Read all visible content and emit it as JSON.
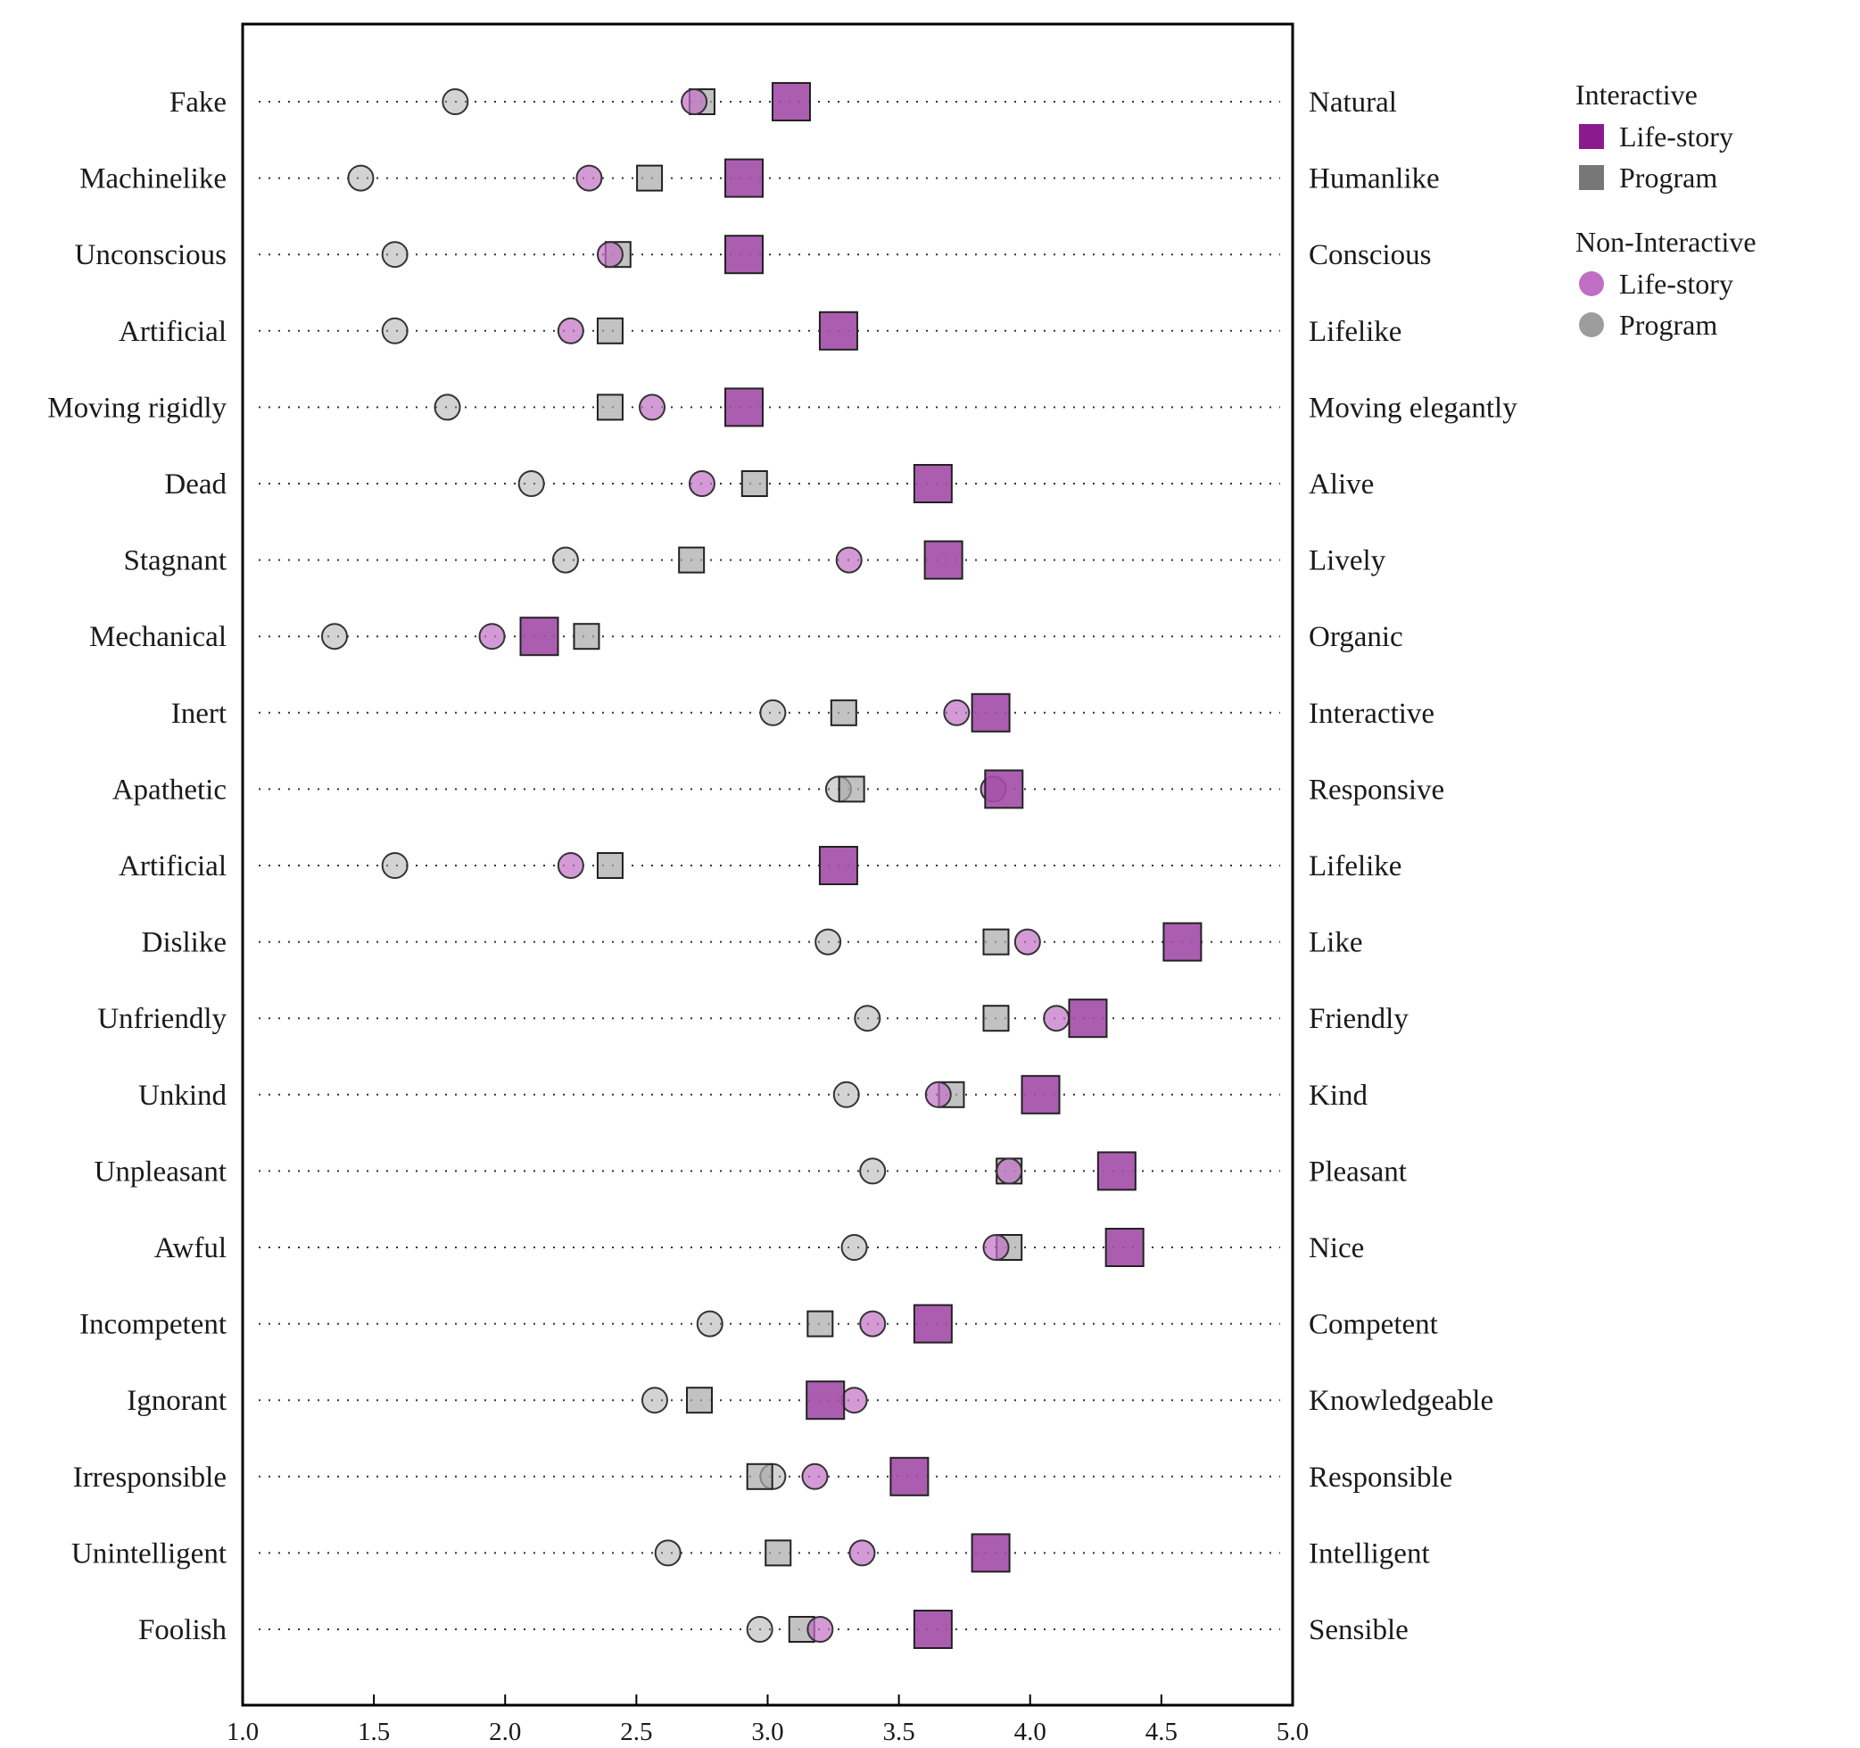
{
  "chart_data": {
    "type": "scatter",
    "orientation": "horizontal",
    "xlim": [
      1.0,
      5.0
    ],
    "x_ticks": [
      "1.0",
      "1.5",
      "2.0",
      "2.5",
      "3.0",
      "3.5",
      "4.0",
      "4.5",
      "5.0"
    ],
    "x_tick_values": [
      1.0,
      1.5,
      2.0,
      2.5,
      3.0,
      3.5,
      4.0,
      4.5,
      5.0
    ],
    "rows": [
      {
        "left": "Fake",
        "right": "Natural"
      },
      {
        "left": "Machinelike",
        "right": "Humanlike"
      },
      {
        "left": "Unconscious",
        "right": "Conscious"
      },
      {
        "left": "Artificial",
        "right": "Lifelike"
      },
      {
        "left": "Moving rigidly",
        "right": "Moving elegantly"
      },
      {
        "left": "Dead",
        "right": "Alive"
      },
      {
        "left": "Stagnant",
        "right": "Lively"
      },
      {
        "left": "Mechanical",
        "right": "Organic"
      },
      {
        "left": "Inert",
        "right": "Interactive"
      },
      {
        "left": "Apathetic",
        "right": "Responsive"
      },
      {
        "left": "Artificial",
        "right": "Lifelike"
      },
      {
        "left": "Dislike",
        "right": "Like"
      },
      {
        "left": "Unfriendly",
        "right": "Friendly"
      },
      {
        "left": "Unkind",
        "right": "Kind"
      },
      {
        "left": "Unpleasant",
        "right": "Pleasant"
      },
      {
        "left": "Awful",
        "right": "Nice"
      },
      {
        "left": "Incompetent",
        "right": "Competent"
      },
      {
        "left": "Ignorant",
        "right": "Knowledgeable"
      },
      {
        "left": "Irresponsible",
        "right": "Responsible"
      },
      {
        "left": "Unintelligent",
        "right": "Intelligent"
      },
      {
        "left": "Foolish",
        "right": "Sensible"
      }
    ],
    "series": [
      {
        "name": "Life-story",
        "group": "Interactive",
        "marker": "square-large",
        "color": "#8b1a8f",
        "values": [
          3.09,
          2.91,
          2.91,
          3.27,
          2.91,
          3.63,
          3.67,
          2.13,
          3.85,
          3.9,
          3.27,
          4.58,
          4.22,
          4.04,
          4.33,
          4.36,
          3.63,
          3.22,
          3.54,
          3.85,
          3.63
        ]
      },
      {
        "name": "Program",
        "group": "Interactive",
        "marker": "square-small",
        "color": "#777777",
        "values": [
          2.75,
          2.55,
          2.43,
          2.4,
          2.4,
          2.95,
          2.71,
          2.31,
          3.29,
          3.32,
          2.4,
          3.87,
          3.87,
          3.7,
          3.92,
          3.92,
          3.2,
          2.74,
          2.97,
          3.04,
          3.13
        ]
      },
      {
        "name": "Life-story",
        "group": "Non-Interactive",
        "marker": "circle",
        "color": "#c06fc4",
        "values": [
          2.72,
          2.32,
          2.4,
          2.25,
          2.56,
          2.75,
          3.31,
          1.95,
          3.72,
          3.86,
          2.25,
          3.99,
          4.1,
          3.65,
          3.92,
          3.87,
          3.4,
          3.33,
          3.18,
          3.36,
          3.2
        ]
      },
      {
        "name": "Program",
        "group": "Non-Interactive",
        "marker": "circle",
        "color": "#9d9d9d",
        "values": [
          1.81,
          1.45,
          1.58,
          1.58,
          1.78,
          2.1,
          2.23,
          1.35,
          3.02,
          3.27,
          1.58,
          3.23,
          3.38,
          3.3,
          3.4,
          3.33,
          2.78,
          2.57,
          3.02,
          2.62,
          2.97
        ]
      }
    ],
    "legend": {
      "position": "top-right-outside",
      "groups": [
        {
          "title": "Interactive",
          "items": [
            {
              "label": "Life-story",
              "symbol": "square",
              "color": "#8b1a8f"
            },
            {
              "label": "Program",
              "symbol": "square",
              "color": "#777777"
            }
          ]
        },
        {
          "title": "Non-Interactive",
          "items": [
            {
              "label": "Life-story",
              "symbol": "circle",
              "color": "#c06fc4"
            },
            {
              "label": "Program",
              "symbol": "circle",
              "color": "#9d9d9d"
            }
          ]
        }
      ]
    },
    "grid": "dotted horizontal row guides"
  }
}
